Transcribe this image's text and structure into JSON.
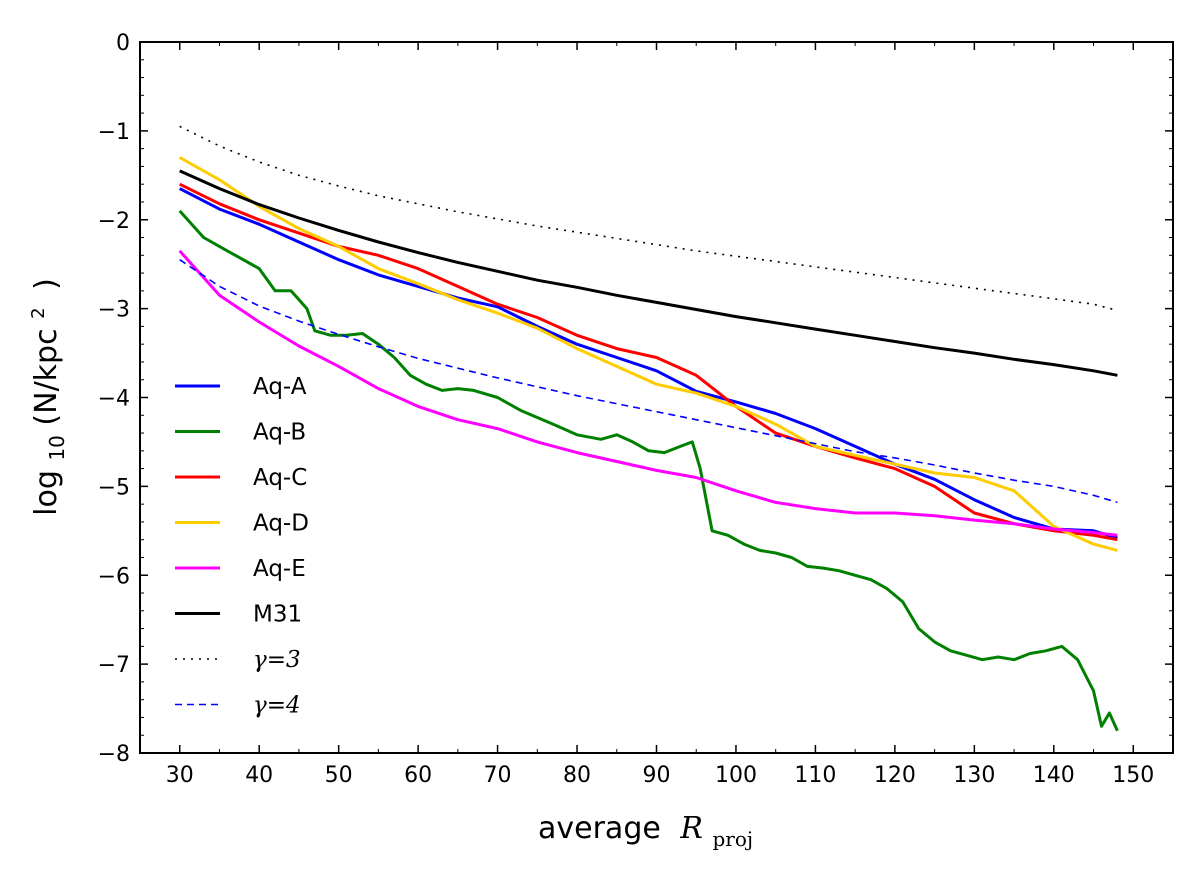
{
  "chart_data": {
    "type": "line",
    "xlabel": "average",
    "xlabel_symbol": "R",
    "xlabel_subscript": "proj",
    "ylabel_prefix": "log",
    "ylabel_sub": "10",
    "ylabel_body": "(N/kpc",
    "ylabel_sup": "2",
    "ylabel_close": ")",
    "xlim": [
      25,
      155
    ],
    "ylim": [
      -8,
      0
    ],
    "xticks": [
      30,
      40,
      50,
      60,
      70,
      80,
      90,
      100,
      110,
      120,
      130,
      140,
      150
    ],
    "yticks": [
      0,
      -1,
      -2,
      -3,
      -4,
      -5,
      -6,
      -7,
      -8
    ],
    "xtick_labels": [
      "30",
      "40",
      "50",
      "60",
      "70",
      "80",
      "90",
      "100",
      "110",
      "120",
      "130",
      "140",
      "150"
    ],
    "ytick_labels": [
      "0",
      "−1",
      "−2",
      "−3",
      "−4",
      "−5",
      "−6",
      "−7",
      "−8"
    ],
    "legend_position": "lower-left",
    "series": [
      {
        "name": "Aq-A",
        "color": "#0000ff",
        "style": "solid",
        "x": [
          30,
          35,
          40,
          45,
          50,
          55,
          60,
          65,
          70,
          75,
          80,
          85,
          90,
          95,
          100,
          105,
          110,
          115,
          120,
          125,
          130,
          135,
          140,
          145,
          148
        ],
        "y": [
          -1.65,
          -1.88,
          -2.05,
          -2.25,
          -2.45,
          -2.62,
          -2.75,
          -2.88,
          -2.98,
          -3.2,
          -3.4,
          -3.55,
          -3.7,
          -3.93,
          -4.05,
          -4.18,
          -4.35,
          -4.55,
          -4.75,
          -4.92,
          -5.15,
          -5.35,
          -5.48,
          -5.5,
          -5.58
        ]
      },
      {
        "name": "Aq-B",
        "color": "#008000",
        "style": "solid",
        "x": [
          30,
          33,
          36,
          40,
          42,
          44,
          46,
          47,
          49,
          51,
          53,
          55,
          57,
          59,
          61,
          63,
          65,
          67,
          70,
          73,
          77,
          80,
          83,
          85,
          87,
          89,
          91,
          93,
          94.5,
          95.5,
          97,
          99,
          101,
          103,
          105,
          107,
          109,
          111,
          113,
          115,
          117,
          119,
          121,
          123,
          125,
          127,
          129,
          131,
          133,
          135,
          137,
          139,
          141,
          143,
          145,
          146,
          147,
          148
        ],
        "y": [
          -1.9,
          -2.2,
          -2.35,
          -2.55,
          -2.8,
          -2.8,
          -3.0,
          -3.25,
          -3.3,
          -3.3,
          -3.28,
          -3.4,
          -3.55,
          -3.75,
          -3.85,
          -3.92,
          -3.9,
          -3.92,
          -4.0,
          -4.15,
          -4.3,
          -4.42,
          -4.47,
          -4.42,
          -4.5,
          -4.6,
          -4.62,
          -4.55,
          -4.5,
          -4.8,
          -5.5,
          -5.55,
          -5.65,
          -5.72,
          -5.75,
          -5.8,
          -5.9,
          -5.92,
          -5.95,
          -6.0,
          -6.05,
          -6.15,
          -6.3,
          -6.6,
          -6.75,
          -6.85,
          -6.9,
          -6.95,
          -6.92,
          -6.95,
          -6.88,
          -6.85,
          -6.8,
          -6.95,
          -7.3,
          -7.7,
          -7.55,
          -7.75
        ]
      },
      {
        "name": "Aq-C",
        "color": "#ff0000",
        "style": "solid",
        "x": [
          30,
          35,
          40,
          45,
          50,
          55,
          60,
          65,
          70,
          75,
          80,
          85,
          90,
          95,
          100,
          105,
          110,
          115,
          120,
          125,
          130,
          135,
          140,
          145,
          148
        ],
        "y": [
          -1.6,
          -1.82,
          -2.0,
          -2.15,
          -2.3,
          -2.4,
          -2.55,
          -2.75,
          -2.95,
          -3.1,
          -3.3,
          -3.45,
          -3.55,
          -3.75,
          -4.1,
          -4.4,
          -4.55,
          -4.68,
          -4.8,
          -5.0,
          -5.3,
          -5.42,
          -5.5,
          -5.55,
          -5.6
        ]
      },
      {
        "name": "Aq-D",
        "color": "#ffcc00",
        "style": "solid",
        "x": [
          30,
          35,
          40,
          45,
          50,
          55,
          60,
          65,
          70,
          75,
          80,
          85,
          90,
          95,
          100,
          105,
          110,
          115,
          120,
          125,
          130,
          135,
          140,
          145,
          148
        ],
        "y": [
          -1.3,
          -1.55,
          -1.85,
          -2.1,
          -2.3,
          -2.55,
          -2.72,
          -2.9,
          -3.05,
          -3.22,
          -3.45,
          -3.65,
          -3.85,
          -3.95,
          -4.1,
          -4.3,
          -4.55,
          -4.65,
          -4.75,
          -4.85,
          -4.9,
          -5.05,
          -5.45,
          -5.65,
          -5.72
        ]
      },
      {
        "name": "Aq-E",
        "color": "#ff00ff",
        "style": "solid",
        "x": [
          30,
          35,
          40,
          45,
          50,
          55,
          60,
          65,
          70,
          75,
          80,
          85,
          90,
          95,
          100,
          105,
          110,
          115,
          120,
          125,
          130,
          135,
          140,
          145,
          148
        ],
        "y": [
          -2.35,
          -2.85,
          -3.15,
          -3.42,
          -3.65,
          -3.9,
          -4.1,
          -4.25,
          -4.35,
          -4.5,
          -4.62,
          -4.72,
          -4.82,
          -4.9,
          -5.05,
          -5.18,
          -5.25,
          -5.3,
          -5.3,
          -5.33,
          -5.38,
          -5.42,
          -5.48,
          -5.52,
          -5.55
        ]
      },
      {
        "name": "M31",
        "color": "#000000",
        "style": "solid",
        "x": [
          30,
          35,
          40,
          45,
          50,
          55,
          60,
          65,
          70,
          75,
          80,
          85,
          90,
          95,
          100,
          105,
          110,
          115,
          120,
          125,
          130,
          135,
          140,
          145,
          148
        ],
        "y": [
          -1.45,
          -1.65,
          -1.83,
          -1.98,
          -2.12,
          -2.25,
          -2.37,
          -2.48,
          -2.58,
          -2.68,
          -2.76,
          -2.85,
          -2.93,
          -3.01,
          -3.09,
          -3.16,
          -3.23,
          -3.3,
          -3.37,
          -3.44,
          -3.5,
          -3.57,
          -3.63,
          -3.7,
          -3.75
        ]
      },
      {
        "name": "γ=3",
        "color": "#000000",
        "style": "dotted",
        "x": [
          30,
          35,
          40,
          45,
          50,
          55,
          60,
          65,
          70,
          75,
          80,
          85,
          90,
          95,
          100,
          105,
          110,
          115,
          120,
          125,
          130,
          135,
          140,
          145,
          148
        ],
        "y": [
          -0.95,
          -1.17,
          -1.35,
          -1.5,
          -1.62,
          -1.73,
          -1.82,
          -1.91,
          -1.99,
          -2.07,
          -2.14,
          -2.21,
          -2.28,
          -2.35,
          -2.41,
          -2.47,
          -2.53,
          -2.59,
          -2.65,
          -2.71,
          -2.77,
          -2.83,
          -2.89,
          -2.95,
          -3.02
        ]
      },
      {
        "name": "γ=4",
        "color": "#0000ff",
        "style": "dashed",
        "x": [
          30,
          35,
          40,
          45,
          50,
          55,
          60,
          65,
          70,
          75,
          80,
          85,
          90,
          95,
          100,
          105,
          110,
          115,
          120,
          125,
          130,
          135,
          140,
          145,
          148
        ],
        "y": [
          -2.45,
          -2.75,
          -2.97,
          -3.14,
          -3.29,
          -3.43,
          -3.56,
          -3.67,
          -3.78,
          -3.88,
          -3.98,
          -4.07,
          -4.16,
          -4.25,
          -4.34,
          -4.43,
          -4.52,
          -4.61,
          -4.68,
          -4.76,
          -4.85,
          -4.93,
          -5.0,
          -5.1,
          -5.18
        ]
      }
    ]
  }
}
